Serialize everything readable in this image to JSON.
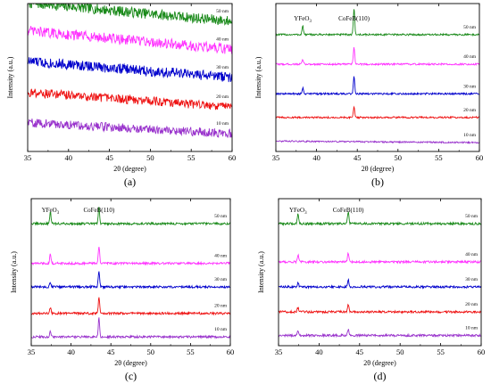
{
  "chart_data": [
    {
      "type": "line",
      "panel_label": "(a)",
      "xlabel": "2θ (degree)",
      "ylabel": "Intensity (a.u.)",
      "xlim": [
        35,
        60
      ],
      "xticks": [
        "35",
        "40",
        "45",
        "50",
        "55",
        "60"
      ],
      "peak_labels": [],
      "series": [
        {
          "name": "50 nm",
          "color": "#1a8a1a",
          "level": 0.88,
          "slope": 0.25,
          "noise": 0.07,
          "peaks": []
        },
        {
          "name": "40 nm",
          "color": "#ff33ff",
          "level": 0.69,
          "slope": 0.25,
          "noise": 0.07,
          "peaks": []
        },
        {
          "name": "30 nm",
          "color": "#0000cc",
          "level": 0.5,
          "slope": 0.22,
          "noise": 0.07,
          "peaks": []
        },
        {
          "name": "20 nm",
          "color": "#ee1111",
          "level": 0.3,
          "slope": 0.2,
          "noise": 0.06,
          "peaks": []
        },
        {
          "name": "10 nm",
          "color": "#9933cc",
          "level": 0.12,
          "slope": 0.15,
          "noise": 0.06,
          "peaks": []
        }
      ]
    },
    {
      "type": "line",
      "panel_label": "(b)",
      "xlabel": "2θ (degree)",
      "ylabel": "Intensity (a.u.)",
      "xlim": [
        35,
        60
      ],
      "xticks": [
        "35",
        "40",
        "45",
        "50",
        "55",
        "60"
      ],
      "peak_labels": [
        {
          "text": "YFeO",
          "sub": "3",
          "x": 38.3
        },
        {
          "text": "CoFeB(110)",
          "sub": "",
          "x": 44.6
        }
      ],
      "series": [
        {
          "name": "50 nm",
          "color": "#1a8a1a",
          "level": 0.79,
          "slope": 0,
          "noise": 0.012,
          "peaks": [
            [
              38.3,
              0.06
            ],
            [
              44.6,
              0.18
            ]
          ]
        },
        {
          "name": "40 nm",
          "color": "#ff33ff",
          "level": 0.59,
          "slope": 0,
          "noise": 0.012,
          "peaks": [
            [
              38.3,
              0.03
            ],
            [
              44.6,
              0.12
            ]
          ]
        },
        {
          "name": "30 nm",
          "color": "#0000cc",
          "level": 0.39,
          "slope": 0,
          "noise": 0.012,
          "peaks": [
            [
              38.3,
              0.04
            ],
            [
              44.6,
              0.12
            ]
          ]
        },
        {
          "name": "20 nm",
          "color": "#ee1111",
          "level": 0.23,
          "slope": 0,
          "noise": 0.012,
          "peaks": [
            [
              44.6,
              0.07
            ]
          ]
        },
        {
          "name": "10 nm",
          "color": "#9933cc",
          "level": 0.06,
          "slope": 0.02,
          "noise": 0.01,
          "peaks": []
        }
      ]
    },
    {
      "type": "line",
      "panel_label": "(c)",
      "xlabel": "2θ (degree)",
      "ylabel": "Intensity (a.u.)",
      "xlim": [
        35,
        60
      ],
      "xticks": [
        "35",
        "40",
        "45",
        "50",
        "55",
        "60"
      ],
      "peak_labels": [
        {
          "text": "YFeO",
          "sub": "3",
          "x": 37.4
        },
        {
          "text": "CoFeB(110)",
          "sub": "",
          "x": 43.5
        }
      ],
      "series": [
        {
          "name": "50 nm",
          "color": "#1a8a1a",
          "level": 0.83,
          "slope": 0,
          "noise": 0.015,
          "peaks": [
            [
              37.4,
              0.08
            ],
            [
              43.5,
              0.11
            ]
          ]
        },
        {
          "name": "40 nm",
          "color": "#ff33ff",
          "level": 0.56,
          "slope": 0,
          "noise": 0.015,
          "peaks": [
            [
              37.4,
              0.06
            ],
            [
              43.5,
              0.12
            ]
          ]
        },
        {
          "name": "30 nm",
          "color": "#0000cc",
          "level": 0.4,
          "slope": 0,
          "noise": 0.015,
          "peaks": [
            [
              37.4,
              0.03
            ],
            [
              43.5,
              0.11
            ]
          ]
        },
        {
          "name": "20 nm",
          "color": "#ee1111",
          "level": 0.22,
          "slope": 0,
          "noise": 0.015,
          "peaks": [
            [
              37.4,
              0.04
            ],
            [
              43.5,
              0.11
            ]
          ]
        },
        {
          "name": "10 nm",
          "color": "#9933cc",
          "level": 0.06,
          "slope": 0,
          "noise": 0.015,
          "peaks": [
            [
              37.4,
              0.04
            ],
            [
              43.5,
              0.13
            ]
          ]
        }
      ]
    },
    {
      "type": "line",
      "panel_label": "(d)",
      "xlabel": "2θ (degree)",
      "ylabel": "Intensity (a.u.)",
      "xlim": [
        35,
        60
      ],
      "xticks": [
        "35",
        "40",
        "45",
        "50",
        "55",
        "60"
      ],
      "peak_labels": [
        {
          "text": "YFeO",
          "sub": "3",
          "x": 37.4
        },
        {
          "text": "CoFeB(110)",
          "sub": "",
          "x": 43.6
        }
      ],
      "series": [
        {
          "name": "50 nm",
          "color": "#1a8a1a",
          "level": 0.83,
          "slope": 0,
          "noise": 0.015,
          "peaks": [
            [
              37.4,
              0.07
            ],
            [
              43.6,
              0.08
            ]
          ]
        },
        {
          "name": "40 nm",
          "color": "#ff33ff",
          "level": 0.57,
          "slope": 0,
          "noise": 0.015,
          "peaks": [
            [
              37.4,
              0.05
            ],
            [
              43.6,
              0.06
            ]
          ]
        },
        {
          "name": "30 nm",
          "color": "#0000cc",
          "level": 0.4,
          "slope": 0,
          "noise": 0.015,
          "peaks": [
            [
              37.4,
              0.03
            ],
            [
              43.6,
              0.05
            ]
          ]
        },
        {
          "name": "20 nm",
          "color": "#ee1111",
          "level": 0.23,
          "slope": 0,
          "noise": 0.015,
          "peaks": [
            [
              37.4,
              0.03
            ],
            [
              43.6,
              0.05
            ]
          ]
        },
        {
          "name": "10 nm",
          "color": "#9933cc",
          "level": 0.07,
          "slope": 0,
          "noise": 0.015,
          "peaks": [
            [
              37.4,
              0.03
            ],
            [
              43.6,
              0.04
            ]
          ]
        }
      ]
    }
  ]
}
